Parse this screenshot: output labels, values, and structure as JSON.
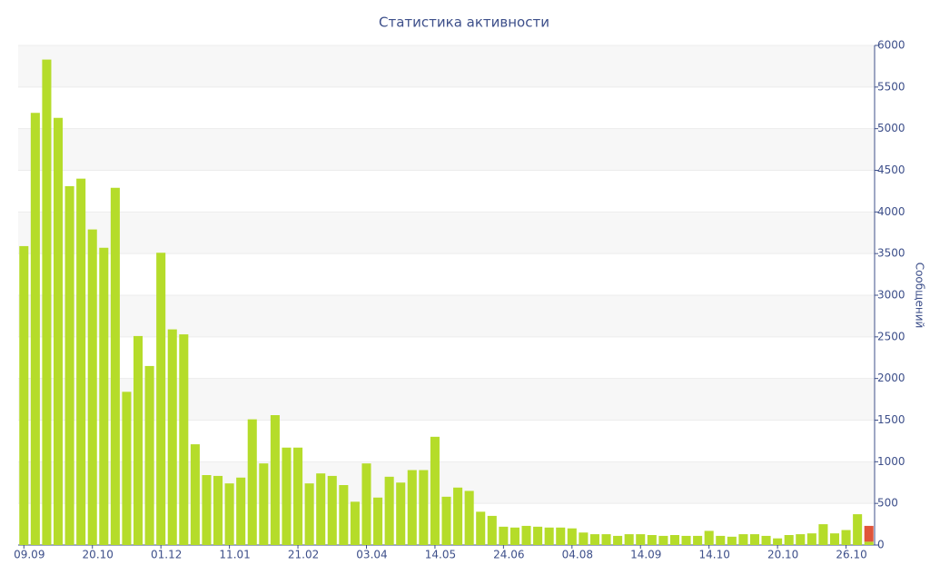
{
  "chart_data": {
    "type": "bar",
    "title": "Статистика активности",
    "y_label": "Сообщений",
    "categories": [
      "09.09",
      null,
      null,
      null,
      null,
      null,
      "20.10",
      null,
      null,
      null,
      null,
      null,
      "01.12",
      null,
      null,
      null,
      null,
      null,
      "11.01",
      null,
      null,
      null,
      null,
      null,
      "21.02",
      null,
      null,
      null,
      null,
      null,
      "03.04",
      null,
      null,
      null,
      null,
      null,
      "14.05",
      null,
      null,
      null,
      null,
      null,
      "24.06",
      null,
      null,
      null,
      null,
      null,
      "04.08",
      null,
      null,
      null,
      null,
      null,
      "14.09",
      null,
      null,
      null,
      null,
      null,
      "14.10",
      null,
      null,
      null,
      null,
      null,
      "20.10",
      null,
      null,
      null,
      null,
      null,
      "26.10",
      null,
      null
    ],
    "series": [
      {
        "color": "#b5dc2a",
        "values": [
          3590,
          5190,
          5830,
          5130,
          4310,
          4400,
          3790,
          3570,
          4290,
          1840,
          2510,
          2150,
          3510,
          2590,
          2530,
          1210,
          840,
          830,
          740,
          810,
          1510,
          980,
          1560,
          1170,
          1170,
          740,
          860,
          830,
          720,
          520,
          980,
          570,
          820,
          750,
          900,
          900,
          1300,
          580,
          690,
          650,
          400,
          350,
          220,
          210,
          230,
          220,
          210,
          210,
          200,
          150,
          130,
          130,
          110,
          130,
          130,
          120,
          110,
          120,
          110,
          110,
          170,
          110,
          100,
          130,
          130,
          110,
          80,
          120,
          130,
          140,
          250,
          140,
          180,
          370,
          40
        ]
      },
      {
        "color": "#e0553a",
        "values": [
          null,
          null,
          null,
          null,
          null,
          null,
          null,
          null,
          null,
          null,
          null,
          null,
          null,
          null,
          null,
          null,
          null,
          null,
          null,
          null,
          null,
          null,
          null,
          null,
          null,
          null,
          null,
          null,
          null,
          null,
          null,
          null,
          null,
          null,
          null,
          null,
          null,
          null,
          null,
          null,
          null,
          null,
          null,
          null,
          null,
          null,
          null,
          null,
          null,
          null,
          null,
          null,
          null,
          null,
          null,
          null,
          null,
          null,
          null,
          null,
          null,
          null,
          null,
          null,
          null,
          null,
          null,
          null,
          null,
          null,
          null,
          null,
          null,
          null,
          190
        ]
      }
    ],
    "stacked": true,
    "ylim": [
      0,
      6000
    ],
    "yticks": [
      0,
      500,
      1000,
      1500,
      2000,
      2500,
      3000,
      3500,
      4000,
      4500,
      5000,
      5500,
      6000
    ],
    "grid": true,
    "y_axis_side": "right"
  }
}
